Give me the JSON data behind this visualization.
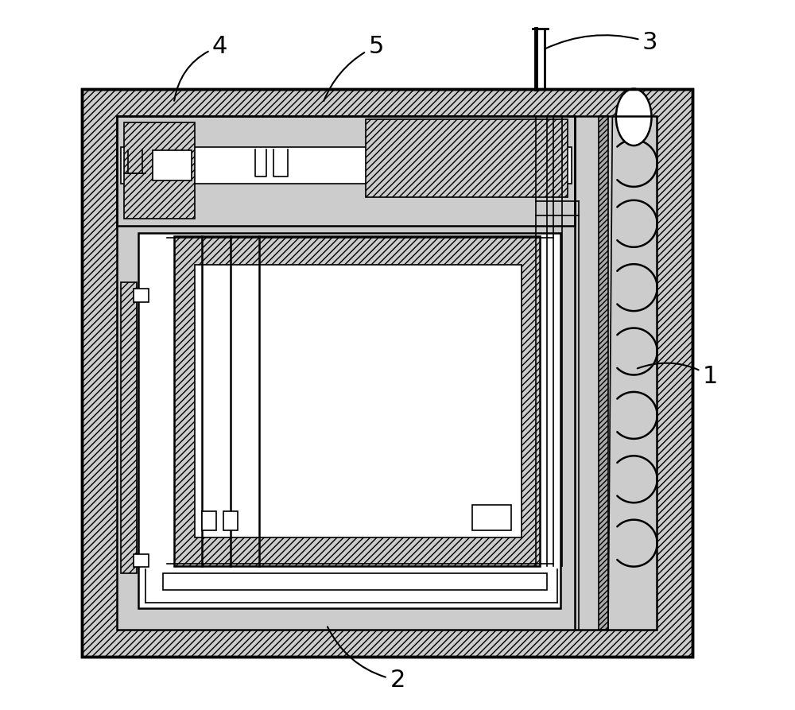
{
  "fig_width": 10.0,
  "fig_height": 8.93,
  "dpi": 100,
  "bg_color": "#ffffff",
  "hatch_gray": "#cccccc",
  "line_color": "#000000",
  "label_fontsize": 22,
  "label_color": "#000000"
}
